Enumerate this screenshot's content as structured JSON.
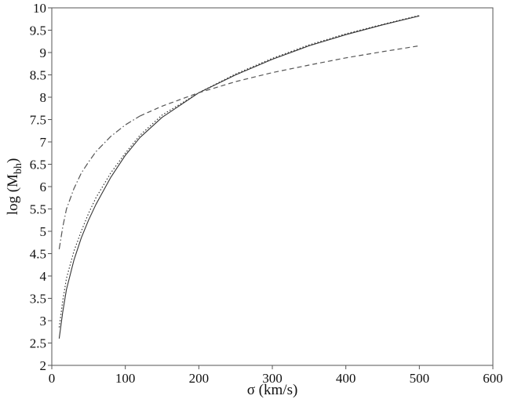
{
  "chart_data": {
    "type": "line",
    "title": "",
    "xlabel": "σ (km/s)",
    "ylabel": {
      "main": "log (M",
      "sub": "bh",
      "close": ")"
    },
    "xlim": [
      0,
      600
    ],
    "ylim": [
      2,
      10
    ],
    "x_ticks": [
      "0",
      "100",
      "200",
      "300",
      "400",
      "500",
      "600"
    ],
    "y_ticks": [
      "2",
      "2.5",
      "3",
      "3.5",
      "4",
      "4.5",
      "5",
      "5.5",
      "6",
      "6.5",
      "7",
      "7.5",
      "8",
      "8.5",
      "9",
      "9.5",
      "10"
    ],
    "grid": false,
    "legend": "none",
    "series": [
      {
        "style": "solid",
        "color": "#333333",
        "x": [
          10,
          15,
          20,
          30,
          40,
          50,
          60,
          80,
          100,
          120,
          150,
          200,
          250,
          300,
          350,
          400,
          450,
          500
        ],
        "y": [
          2.6,
          3.2,
          3.7,
          4.35,
          4.85,
          5.25,
          5.6,
          6.2,
          6.7,
          7.1,
          7.55,
          8.1,
          8.5,
          8.85,
          9.15,
          9.4,
          9.62,
          9.82
        ]
      },
      {
        "style": "dotted",
        "color": "#333333",
        "x": [
          10,
          15,
          20,
          30,
          40,
          50,
          60,
          80,
          100,
          120,
          150,
          200,
          250,
          300,
          350,
          400,
          450,
          500
        ],
        "y": [
          2.85,
          3.45,
          3.95,
          4.55,
          5.0,
          5.4,
          5.75,
          6.3,
          6.75,
          7.15,
          7.6,
          8.1,
          8.52,
          8.87,
          9.17,
          9.42,
          9.63,
          9.83
        ]
      },
      {
        "style": "dashdot",
        "color": "#555555",
        "x": [
          10,
          15,
          20,
          30,
          40,
          50,
          60,
          80,
          100,
          120
        ],
        "y": [
          4.6,
          5.1,
          5.5,
          5.95,
          6.3,
          6.55,
          6.78,
          7.12,
          7.38,
          7.58
        ]
      },
      {
        "style": "dashed",
        "color": "#555555",
        "x": [
          120,
          150,
          200,
          250,
          300,
          350,
          400,
          450,
          500
        ],
        "y": [
          7.58,
          7.8,
          8.1,
          8.35,
          8.55,
          8.72,
          8.88,
          9.02,
          9.15
        ]
      }
    ]
  }
}
